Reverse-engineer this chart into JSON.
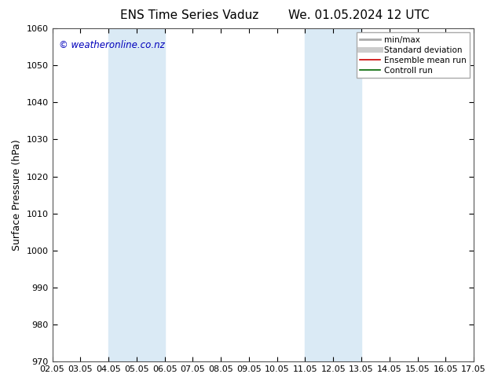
{
  "title": "ENS Time Series Vaduz",
  "title2": "We. 01.05.2024 12 UTC",
  "ylabel": "Surface Pressure (hPa)",
  "ylim": [
    970,
    1060
  ],
  "yticks": [
    970,
    980,
    990,
    1000,
    1010,
    1020,
    1030,
    1040,
    1050,
    1060
  ],
  "xtick_labels": [
    "02.05",
    "03.05",
    "04.05",
    "05.05",
    "06.05",
    "07.05",
    "08.05",
    "09.05",
    "10.05",
    "11.05",
    "12.05",
    "13.05",
    "14.05",
    "15.05",
    "16.05",
    "17.05"
  ],
  "xtick_positions": [
    0,
    1,
    2,
    3,
    4,
    5,
    6,
    7,
    8,
    9,
    10,
    11,
    12,
    13,
    14,
    15
  ],
  "shaded_bands": [
    {
      "xmin": 2,
      "xmax": 4,
      "color": "#daeaf5"
    },
    {
      "xmin": 9,
      "xmax": 11,
      "color": "#daeaf5"
    }
  ],
  "watermark": "© weatheronline.co.nz",
  "legend_entries": [
    {
      "label": "min/max",
      "color": "#aaaaaa",
      "lw": 2.0
    },
    {
      "label": "Standard deviation",
      "color": "#cccccc",
      "lw": 5.0
    },
    {
      "label": "Ensemble mean run",
      "color": "#cc0000",
      "lw": 1.2
    },
    {
      "label": "Controll run",
      "color": "#006600",
      "lw": 1.2
    }
  ],
  "background_color": "#ffffff",
  "plot_bg_color": "#ffffff",
  "title_fontsize": 11,
  "tick_fontsize": 8,
  "ylabel_fontsize": 9,
  "watermark_fontsize": 8.5,
  "legend_fontsize": 7.5
}
